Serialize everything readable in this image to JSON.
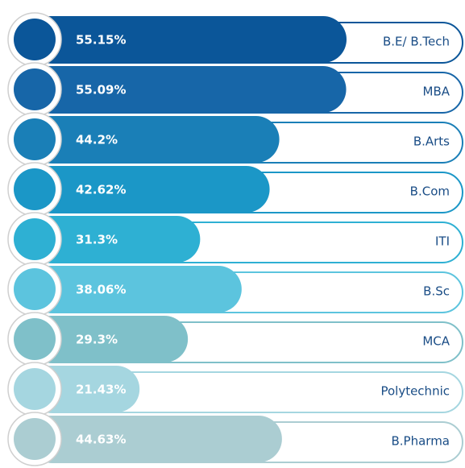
{
  "chart_data": {
    "type": "bar",
    "categories": [
      "B.E/ B.Tech",
      "MBA",
      "B.Arts",
      "B.Com",
      "ITI",
      "B.Sc",
      "MCA",
      "Polytechnic",
      "B.Pharma"
    ],
    "values": [
      55.15,
      55.09,
      44.2,
      42.62,
      31.3,
      38.06,
      29.3,
      21.43,
      44.63
    ],
    "value_labels": [
      "55.15%",
      "55.09%",
      "44.2%",
      "42.62%",
      "31.3%",
      "38.06%",
      "29.3%",
      "21.43%",
      "44.63%"
    ],
    "colors": [
      "#0b5699",
      "#1766a8",
      "#1a7fb7",
      "#1b97c7",
      "#2eb0d3",
      "#5cc4de",
      "#7fc0c9",
      "#a5d6e0",
      "#abcdd2"
    ]
  }
}
